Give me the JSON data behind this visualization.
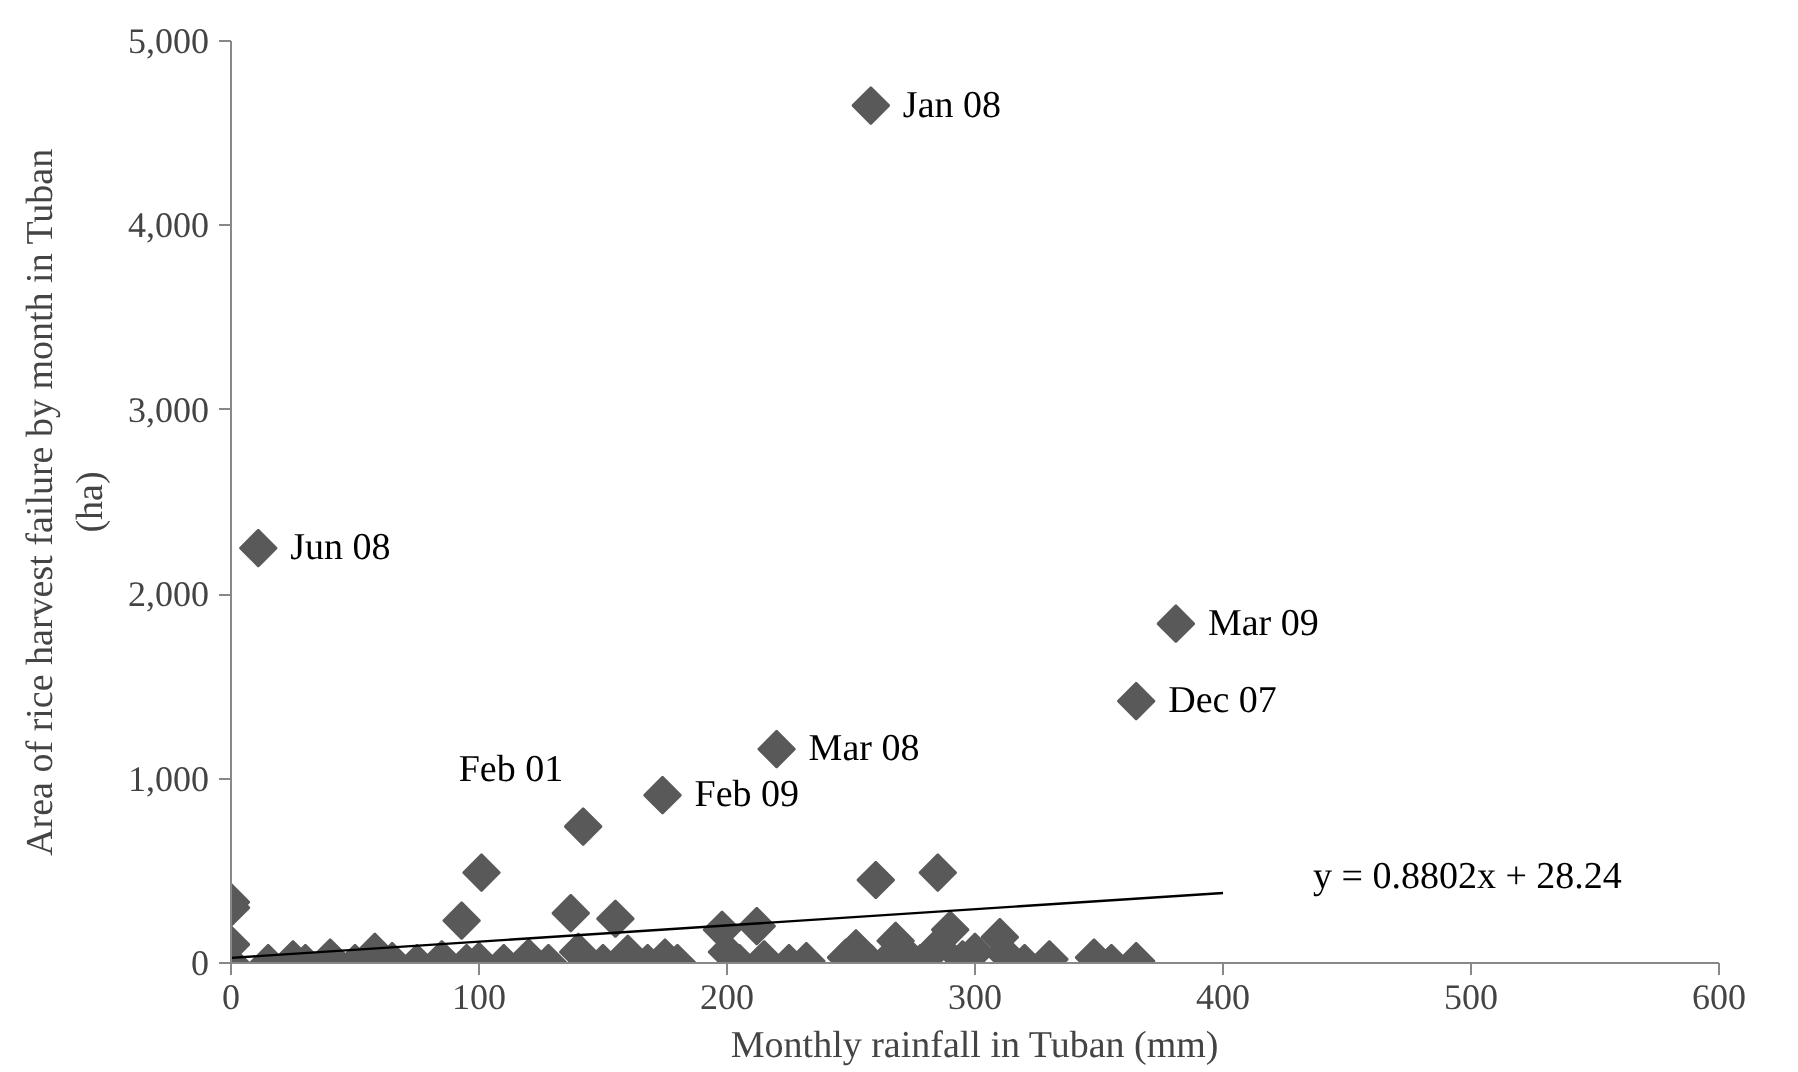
{
  "chart_data": {
    "type": "scatter",
    "xlabel": "Monthly rainfall in Tuban (mm)",
    "ylabel": "Area of rice harvest failure by month in Tuban (ha)",
    "xlim": [
      0,
      600
    ],
    "xticks": [
      0,
      100,
      200,
      300,
      400,
      500,
      600
    ],
    "ylim": [
      0,
      5000
    ],
    "yticks": [
      {
        "value": 0,
        "label": "0"
      },
      {
        "value": 1000,
        "label": "1,000"
      },
      {
        "value": 2000,
        "label": "2,000"
      },
      {
        "value": 3000,
        "label": "3,000"
      },
      {
        "value": 4000,
        "label": "4,000"
      },
      {
        "value": 5000,
        "label": "5,000"
      }
    ],
    "grid": false,
    "marker": "diamond",
    "series": [
      {
        "color": "#595959",
        "x": [
          258,
          11,
          381,
          365,
          220,
          174,
          142,
          101,
          260,
          285,
          0,
          0,
          0,
          0,
          15,
          25,
          30,
          40,
          50,
          58,
          65,
          75,
          85,
          93,
          95,
          100,
          110,
          120,
          128,
          137,
          140,
          150,
          155,
          160,
          168,
          175,
          180,
          198,
          200,
          205,
          212,
          215,
          225,
          232,
          248,
          252,
          258,
          265,
          268,
          272,
          278,
          285,
          290,
          295,
          300,
          320,
          310,
          312,
          330,
          348,
          355,
          365
        ],
        "values": [
          4650,
          2250,
          1840,
          1420,
          1160,
          910,
          740,
          490,
          450,
          490,
          330,
          300,
          100,
          0,
          0,
          20,
          0,
          30,
          0,
          60,
          10,
          0,
          20,
          230,
          0,
          10,
          0,
          30,
          0,
          270,
          60,
          0,
          240,
          50,
          0,
          30,
          0,
          180,
          60,
          0,
          200,
          20,
          0,
          10,
          30,
          80,
          0,
          20,
          120,
          50,
          0,
          90,
          180,
          20,
          60,
          0,
          140,
          50,
          20,
          30,
          0,
          10
        ]
      },
      {
        "type": "line",
        "marker": "none",
        "color": "#000000",
        "x": [
          0,
          400
        ],
        "values": [
          28,
          380
        ]
      }
    ],
    "annotations": [
      {
        "text": "Jan 08",
        "x": 258,
        "y": 4650
      },
      {
        "text": "Jun 08",
        "x": 11,
        "y": 2250
      },
      {
        "text": "Mar 09",
        "x": 381,
        "y": 1840
      },
      {
        "text": "Dec 07",
        "x": 365,
        "y": 1420
      },
      {
        "text": "Mar 08",
        "x": 220,
        "y": 1160
      },
      {
        "text": "Feb 09",
        "x": 174,
        "y": 910
      },
      {
        "text": "Feb 01",
        "x": 142,
        "y": 740
      },
      "y = 0.8802x + 28.24"
    ]
  }
}
